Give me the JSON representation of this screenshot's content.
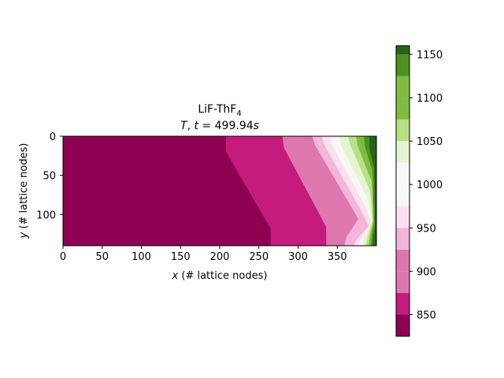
{
  "chart_data": {
    "type": "heatmap",
    "subtype": "filled-contour",
    "title_line1": "LiF-ThF",
    "title_line1_subscript": "4",
    "title_line2": "T, t = 499.94s",
    "xlabel": "x (# lattice nodes)",
    "ylabel": "y (# lattice nodes)",
    "xlim": [
      0,
      400
    ],
    "ylim": [
      140,
      0
    ],
    "y_axis_inverted": true,
    "x_ticks": [
      0,
      50,
      100,
      150,
      200,
      250,
      300,
      350
    ],
    "y_ticks": [
      0,
      50,
      100
    ],
    "colormap": "PiYG",
    "colorbar": {
      "range": [
        825,
        1160
      ],
      "levels": [
        825,
        850,
        875,
        900,
        925,
        950,
        975,
        1000,
        1025,
        1050,
        1075,
        1100,
        1125,
        1150,
        1160
      ],
      "colors": [
        "#8e0152",
        "#c51b7d",
        "#de77ae",
        "#f1b6da",
        "#fde0ef",
        "#f7f7f7",
        "#e6f5d0",
        "#b8e186",
        "#7fbc41",
        "#4d9221",
        "#276419"
      ],
      "ticks": [
        850,
        900,
        950,
        1000,
        1050,
        1100,
        1150
      ],
      "position": "right"
    },
    "contour_boundaries": [
      {
        "level": 875,
        "points": [
          [
            208,
            0
          ],
          [
            208,
            20
          ],
          [
            265,
            118
          ],
          [
            265,
            140
          ]
        ]
      },
      {
        "level": 900,
        "points": [
          [
            280,
            0
          ],
          [
            282,
            15
          ],
          [
            336,
            116
          ],
          [
            336,
            140
          ]
        ]
      },
      {
        "level": 925,
        "points": [
          [
            318,
            0
          ],
          [
            322,
            12
          ],
          [
            377,
            106
          ],
          [
            362,
            128
          ],
          [
            359,
            140
          ]
        ]
      },
      {
        "level": 950,
        "points": [
          [
            330,
            0
          ],
          [
            334,
            12
          ],
          [
            382,
            98
          ],
          [
            390,
            115
          ],
          [
            375,
            132
          ],
          [
            371,
            140
          ]
        ]
      },
      {
        "level": 975,
        "points": [
          [
            340,
            0
          ],
          [
            344,
            12
          ],
          [
            386,
            90
          ],
          [
            394,
            112
          ],
          [
            381,
            130
          ],
          [
            377,
            140
          ]
        ]
      },
      {
        "level": 1000,
        "points": [
          [
            352,
            0
          ],
          [
            355,
            12
          ],
          [
            389,
            80
          ],
          [
            394,
            110
          ],
          [
            385,
            128
          ],
          [
            382,
            140
          ]
        ]
      },
      {
        "level": 1025,
        "points": [
          [
            364,
            0
          ],
          [
            366,
            10
          ],
          [
            392,
            70
          ],
          [
            395,
            108
          ],
          [
            389,
            128
          ],
          [
            386,
            140
          ]
        ]
      },
      {
        "level": 1050,
        "points": [
          [
            374,
            0
          ],
          [
            376,
            12
          ],
          [
            394,
            58
          ],
          [
            396,
            108
          ],
          [
            392,
            126
          ],
          [
            390,
            140
          ]
        ]
      },
      {
        "level": 1075,
        "points": [
          [
            384,
            0
          ],
          [
            385,
            12
          ],
          [
            395,
            45
          ],
          [
            397,
            110
          ],
          [
            394,
            126
          ],
          [
            393,
            140
          ]
        ]
      },
      {
        "level": 1100,
        "points": [
          [
            391,
            0
          ],
          [
            391,
            15
          ],
          [
            397,
            40
          ],
          [
            398,
            115
          ],
          [
            396,
            128
          ],
          [
            395,
            140
          ]
        ]
      },
      {
        "level": 1125,
        "points": [
          [
            396,
            0
          ],
          [
            396,
            18
          ],
          [
            399,
            30
          ],
          [
            399,
            120
          ],
          [
            398,
            140
          ]
        ]
      }
    ]
  }
}
